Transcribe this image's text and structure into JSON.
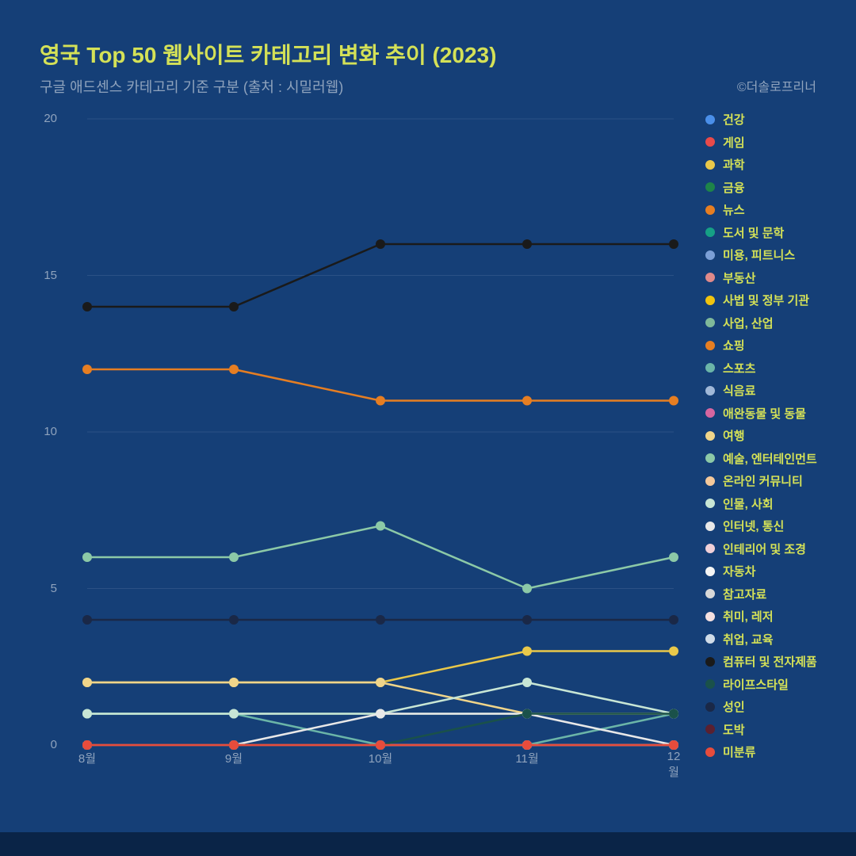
{
  "title": "영국 Top 50 웹사이트 카테고리 변화 추이 (2023)",
  "subtitle": "구글 애드센스 카테고리 기준 구분 (출처 : 시밀러웹)",
  "credit": "©더솔로프리너",
  "background_color": "#153f77",
  "footer_color": "#0a2447",
  "title_color": "#d4e157",
  "subtitle_color": "#8fa3bd",
  "legend_label_color": "#d4e157",
  "axis_label_color": "#8fa3bd",
  "grid_color": "#3b5e8f",
  "chart": {
    "type": "line",
    "x_labels": [
      "8월",
      "9월",
      "10월",
      "11월",
      "12월"
    ],
    "y_ticks": [
      0,
      5,
      10,
      15,
      20
    ],
    "ylim": [
      0,
      20
    ],
    "marker_radius": 6,
    "line_width": 2.5,
    "series": [
      {
        "name": "건강",
        "color": "#4a8fe9",
        "values": [
          0,
          0,
          0,
          0,
          0
        ]
      },
      {
        "name": "게임",
        "color": "#e94a4a",
        "values": [
          0,
          0,
          0,
          0,
          0
        ]
      },
      {
        "name": "과학",
        "color": "#e9c84a",
        "values": [
          2,
          2,
          2,
          3,
          3
        ]
      },
      {
        "name": "금융",
        "color": "#1e8449",
        "values": [
          0,
          0,
          0,
          0,
          0
        ]
      },
      {
        "name": "뉴스",
        "color": "#e67e22",
        "values": [
          12,
          12,
          11,
          11,
          11
        ]
      },
      {
        "name": "도서 및 문학",
        "color": "#16a085",
        "values": [
          0,
          0,
          0,
          0,
          0
        ]
      },
      {
        "name": "미용, 피트니스",
        "color": "#7b9fd6",
        "values": [
          0,
          0,
          0,
          0,
          0
        ]
      },
      {
        "name": "부동산",
        "color": "#e08a8a",
        "values": [
          0,
          0,
          0,
          0,
          0
        ]
      },
      {
        "name": "사법 및 정부 기관",
        "color": "#f1c40f",
        "values": [
          0,
          0,
          0,
          0,
          0
        ]
      },
      {
        "name": "사업, 산업",
        "color": "#7fb99a",
        "values": [
          1,
          1,
          1,
          1,
          1
        ]
      },
      {
        "name": "쇼핑",
        "color": "#e67e22",
        "values": [
          0,
          0,
          0,
          0,
          0
        ]
      },
      {
        "name": "스포츠",
        "color": "#6bb5a8",
        "values": [
          1,
          1,
          0,
          0,
          1
        ]
      },
      {
        "name": "식음료",
        "color": "#a0b8d8",
        "values": [
          0,
          0,
          0,
          0,
          0
        ]
      },
      {
        "name": "애완동물 및 동물",
        "color": "#d666a0",
        "values": [
          0,
          0,
          0,
          0,
          0
        ]
      },
      {
        "name": "여행",
        "color": "#f0d58a",
        "values": [
          2,
          2,
          2,
          1,
          1
        ]
      },
      {
        "name": "예술, 엔터테인먼트",
        "color": "#8cc9a7",
        "values": [
          6,
          6,
          7,
          5,
          6
        ]
      },
      {
        "name": "온라인 커뮤니티",
        "color": "#f5c99b",
        "values": [
          0,
          0,
          0,
          0,
          0
        ]
      },
      {
        "name": "인물, 사회",
        "color": "#c8e6d5",
        "values": [
          1,
          1,
          1,
          2,
          1
        ]
      },
      {
        "name": "인터넷, 통신",
        "color": "#e8e8e8",
        "values": [
          0,
          0,
          1,
          1,
          0
        ]
      },
      {
        "name": "인테리어 및 조경",
        "color": "#f0d0d8",
        "values": [
          0,
          0,
          0,
          0,
          0
        ]
      },
      {
        "name": "자동차",
        "color": "#f5f5f5",
        "values": [
          0,
          0,
          0,
          0,
          0
        ]
      },
      {
        "name": "참고자료",
        "color": "#d8d8d8",
        "values": [
          0,
          0,
          0,
          0,
          0
        ]
      },
      {
        "name": "취미, 레저",
        "color": "#f5e0e0",
        "values": [
          0,
          0,
          0,
          0,
          0
        ]
      },
      {
        "name": "취업, 교육",
        "color": "#d0dce8",
        "values": [
          0,
          0,
          0,
          0,
          0
        ]
      },
      {
        "name": "컴퓨터 및 전자제품",
        "color": "#1a1a1a",
        "values": [
          14,
          14,
          16,
          16,
          16
        ]
      },
      {
        "name": "라이프스타일",
        "color": "#1a514a",
        "values": [
          0,
          0,
          0,
          1,
          1
        ]
      },
      {
        "name": "성인",
        "color": "#1a2847",
        "values": [
          4,
          4,
          4,
          4,
          4
        ]
      },
      {
        "name": "도박",
        "color": "#5a2030",
        "values": [
          0,
          0,
          0,
          0,
          0
        ]
      },
      {
        "name": "미분류",
        "color": "#e74c3c",
        "values": [
          0,
          0,
          0,
          0,
          0
        ]
      }
    ]
  }
}
